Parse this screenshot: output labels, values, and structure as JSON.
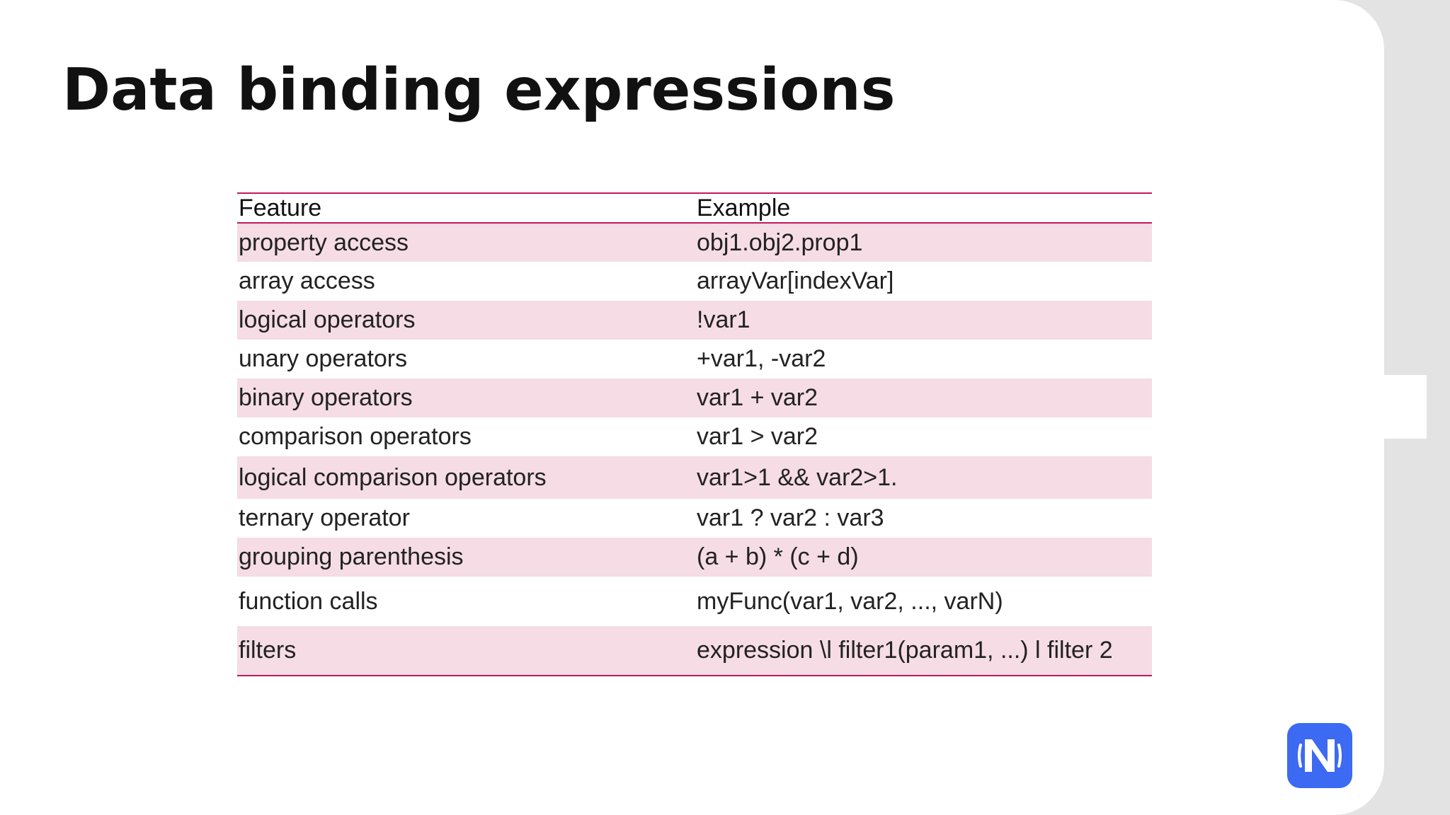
{
  "slide": {
    "title": "Data binding expressions"
  },
  "table": {
    "headers": [
      "Feature",
      "Example"
    ],
    "rows": [
      [
        "property access",
        "obj1.obj2.prop1"
      ],
      [
        "array access",
        "arrayVar[indexVar]"
      ],
      [
        "logical operators",
        "!var1"
      ],
      [
        "unary operators",
        "+var1, -var2"
      ],
      [
        "binary operators",
        "var1 + var2"
      ],
      [
        "comparison operators",
        "var1 > var2"
      ],
      [
        "logical comparison operators",
        "var1>1 && var2>1."
      ],
      [
        "ternary operator",
        "var1 ? var2 : var3"
      ],
      [
        "grouping parenthesis",
        "(a + b) * (c + d)"
      ],
      [
        "function calls",
        "myFunc(var1, var2, ..., varN)"
      ],
      [
        "filters",
        "expression \\l filter1(param1, ...) l filter 2"
      ]
    ]
  },
  "colors": {
    "accent": "#c2185b",
    "row_stripe": "#f5dce5",
    "logo_bg": "#3d6af2"
  },
  "logo": {
    "icon": "nativescript-logo-icon"
  }
}
